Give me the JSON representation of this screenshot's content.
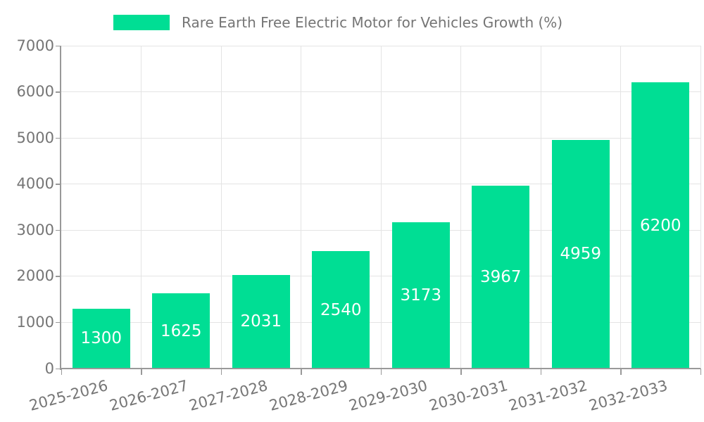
{
  "chart_data": {
    "type": "bar",
    "title": "Rare Earth Free Electric Motor for Vehicles Growth (%)",
    "legend": {
      "position": "top",
      "entries": [
        "Rare Earth Free Electric Motor for Vehicles Growth (%)"
      ]
    },
    "categories": [
      "2025-2026",
      "2026-2027",
      "2027-2028",
      "2028-2029",
      "2029-2030",
      "2030-2031",
      "2031-2032",
      "2032-2033"
    ],
    "values": [
      1300,
      1625,
      2031,
      2540,
      3173,
      3967,
      4959,
      6200
    ],
    "xlabel": "",
    "ylabel": "",
    "ylim": [
      0,
      7000
    ],
    "yticks": [
      0,
      1000,
      2000,
      3000,
      4000,
      5000,
      6000,
      7000
    ],
    "grid": true,
    "x_tick_rotation_deg": -15,
    "colors": {
      "bar": "#00DE94",
      "value_label": "#FFFFFF",
      "axis_line": "#999999",
      "gridline": "#E4E4E4",
      "tick_label": "#757575",
      "legend_text": "#757575",
      "background": "#FFFFFF"
    }
  }
}
